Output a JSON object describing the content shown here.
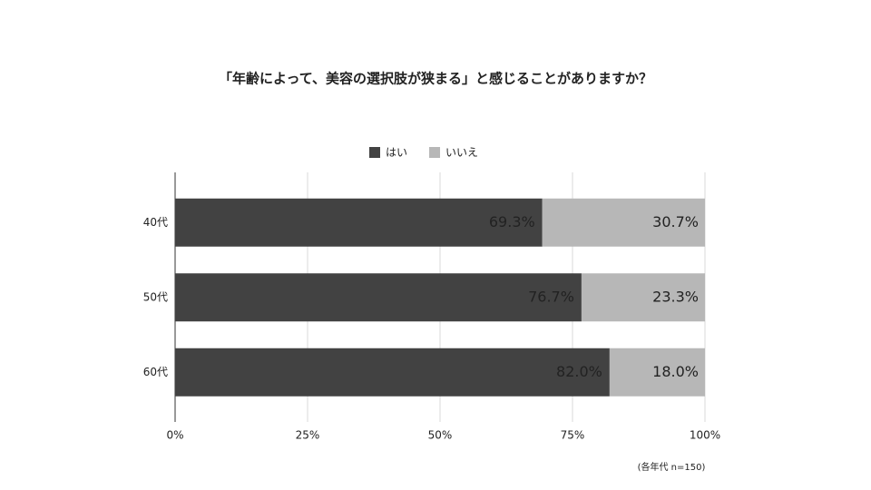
{
  "chart_data": {
    "type": "stacked_bar_horizontal",
    "title": "「年齢によって、美容の選択肢が狭まる」と感じることがありますか？",
    "categories": [
      "40代",
      "50代",
      "60代"
    ],
    "series": [
      {
        "name": "はい",
        "color": "#424242",
        "values": [
          69.3,
          76.7,
          82.0
        ],
        "value_labels": [
          "69.3%",
          "76.7%",
          "82.0%"
        ]
      },
      {
        "name": "いいえ",
        "color": "#b7b7b7",
        "values": [
          30.7,
          23.3,
          18.0
        ],
        "value_labels": [
          "30.7%",
          "23.3%",
          "18.0%"
        ]
      }
    ],
    "xlim": [
      0,
      100
    ],
    "xticks": [
      {
        "value": 0,
        "label": "0%"
      },
      {
        "value": 25,
        "label": "25%"
      },
      {
        "value": 50,
        "label": "50%"
      },
      {
        "value": 75,
        "label": "75%"
      },
      {
        "value": 100,
        "label": "100%"
      }
    ],
    "grid": true,
    "legend": "top",
    "annotation": "(各年代 n=150)"
  }
}
